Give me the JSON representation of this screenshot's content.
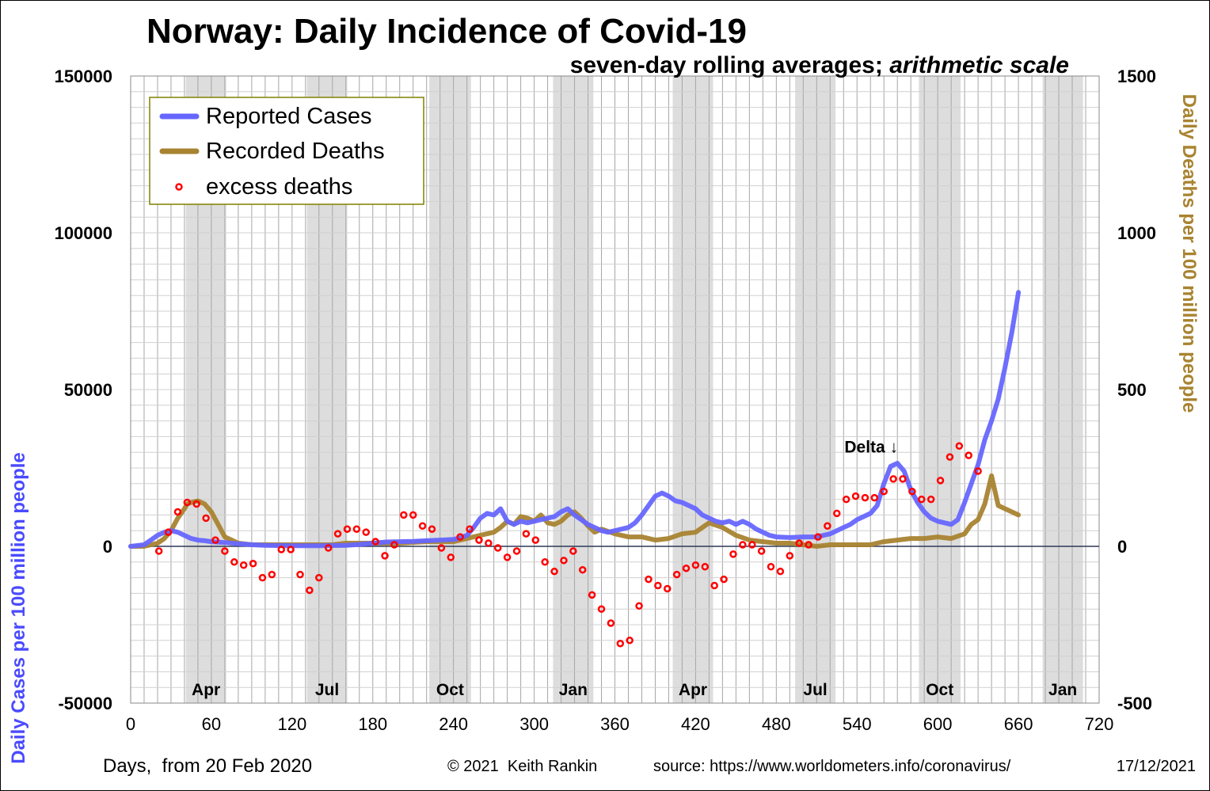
{
  "chart_data": {
    "type": "line",
    "title": "Norway: Daily Incidence of Covid-19",
    "subtitle_plain": "seven-day rolling averages;",
    "subtitle_italic": "arithmetic scale",
    "xlabel": "Days,  from 20 Feb 2020",
    "ylabel_left": "Daily Cases per 100 million people",
    "ylabel_right": "Daily Deaths per 100 million people",
    "xlim": [
      0,
      720
    ],
    "ylim_left": [
      -50000,
      150000
    ],
    "ylim_right": [
      -500,
      1500
    ],
    "x_ticks": [
      "0",
      "60",
      "120",
      "180",
      "240",
      "300",
      "360",
      "420",
      "480",
      "540",
      "600",
      "660",
      "720"
    ],
    "y_ticks_left": [
      "150000",
      "100000",
      "50000",
      "0",
      "-50000"
    ],
    "y_ticks_right": [
      "1500",
      "1000",
      "500",
      "0",
      "-500"
    ],
    "grid": true,
    "shaded_bands": [
      {
        "label": "Apr",
        "x0": 41,
        "x1": 71
      },
      {
        "label": "Jul",
        "x0": 131,
        "x1": 161
      },
      {
        "label": "Oct",
        "x0": 222,
        "x1": 253
      },
      {
        "label": "Jan",
        "x0": 314,
        "x1": 344
      },
      {
        "label": "Apr",
        "x0": 403,
        "x1": 433
      },
      {
        "label": "Jul",
        "x0": 494,
        "x1": 524
      },
      {
        "label": "Oct",
        "x0": 586,
        "x1": 617
      },
      {
        "label": "Jan",
        "x0": 678,
        "x1": 708
      }
    ],
    "legend": {
      "placement": "top-left",
      "entries": [
        {
          "label": "Reported Cases",
          "kind": "line",
          "color": "#6666ff"
        },
        {
          "label": "Recorded Deaths",
          "kind": "line",
          "color": "#a88330"
        },
        {
          "label": "excess deaths",
          "kind": "marker",
          "color": "#ff0000"
        }
      ]
    },
    "annotation": {
      "text": "Delta ↓",
      "x": 560,
      "y": 35000
    },
    "series": [
      {
        "name": "Reported Cases",
        "axis": "left",
        "color": "#6666ff",
        "x": [
          0,
          10,
          15,
          20,
          25,
          30,
          35,
          40,
          45,
          50,
          55,
          60,
          70,
          80,
          90,
          100,
          120,
          140,
          160,
          170,
          180,
          190,
          200,
          210,
          220,
          230,
          240,
          245,
          250,
          255,
          260,
          265,
          270,
          275,
          280,
          285,
          290,
          295,
          300,
          305,
          310,
          315,
          320,
          325,
          330,
          335,
          340,
          345,
          350,
          355,
          360,
          365,
          370,
          375,
          380,
          385,
          390,
          395,
          400,
          405,
          410,
          415,
          420,
          425,
          430,
          435,
          440,
          445,
          450,
          455,
          460,
          465,
          470,
          475,
          480,
          490,
          500,
          510,
          520,
          525,
          530,
          535,
          540,
          545,
          550,
          555,
          560,
          565,
          570,
          575,
          580,
          585,
          590,
          595,
          600,
          605,
          610,
          615,
          620,
          625,
          630,
          635,
          640,
          645,
          650,
          655,
          660
        ],
        "y": [
          0,
          500,
          2000,
          3500,
          4500,
          5000,
          4500,
          3500,
          2500,
          2000,
          1800,
          1500,
          1200,
          800,
          500,
          300,
          200,
          200,
          300,
          600,
          1000,
          1400,
          1500,
          1600,
          1800,
          2000,
          2200,
          2700,
          3500,
          6000,
          9000,
          10500,
          10000,
          12000,
          8000,
          7000,
          8000,
          7500,
          8000,
          8500,
          9000,
          9500,
          11000,
          12000,
          10000,
          8500,
          7000,
          6000,
          5000,
          4500,
          5000,
          5500,
          6000,
          7500,
          10000,
          13000,
          16000,
          17000,
          16000,
          14500,
          14000,
          13000,
          12000,
          10000,
          9000,
          8000,
          7500,
          8000,
          7000,
          8000,
          7000,
          5500,
          4500,
          3500,
          3000,
          2800,
          3000,
          3000,
          4000,
          5000,
          6000,
          7000,
          8500,
          9500,
          10500,
          13000,
          20000,
          25500,
          26500,
          24000,
          18000,
          14000,
          11000,
          9000,
          8000,
          7500,
          7000,
          8500,
          14000,
          20000,
          26000,
          34000,
          40000,
          47000,
          57000,
          68000,
          81000
        ]
      },
      {
        "name": "Recorded Deaths",
        "axis": "right",
        "color": "#a88330",
        "x": [
          0,
          10,
          20,
          25,
          30,
          35,
          40,
          42,
          45,
          50,
          55,
          60,
          65,
          70,
          80,
          90,
          100,
          110,
          120,
          130,
          140,
          150,
          160,
          170,
          180,
          200,
          220,
          240,
          260,
          270,
          275,
          280,
          285,
          290,
          295,
          300,
          305,
          310,
          315,
          320,
          325,
          330,
          335,
          340,
          345,
          350,
          360,
          370,
          380,
          390,
          400,
          410,
          420,
          430,
          440,
          450,
          460,
          470,
          480,
          490,
          500,
          510,
          520,
          530,
          540,
          550,
          560,
          570,
          580,
          590,
          600,
          610,
          620,
          625,
          630,
          635,
          640,
          645,
          650,
          655,
          660
        ],
        "y": [
          0,
          0,
          10,
          25,
          50,
          90,
          120,
          135,
          140,
          145,
          135,
          110,
          70,
          30,
          10,
          5,
          5,
          5,
          5,
          5,
          5,
          5,
          10,
          10,
          10,
          10,
          15,
          15,
          35,
          45,
          60,
          80,
          70,
          95,
          90,
          80,
          100,
          75,
          70,
          80,
          100,
          110,
          90,
          65,
          45,
          55,
          40,
          30,
          30,
          20,
          25,
          40,
          45,
          75,
          60,
          35,
          20,
          15,
          10,
          10,
          5,
          0,
          5,
          5,
          5,
          5,
          15,
          20,
          25,
          25,
          30,
          25,
          40,
          70,
          85,
          135,
          225,
          130,
          120,
          110,
          100
        ]
      },
      {
        "name": "excess deaths",
        "axis": "right",
        "color": "#ff0000",
        "kind": "points",
        "x": [
          21,
          28,
          35,
          42,
          49,
          56,
          63,
          70,
          77,
          84,
          91,
          98,
          105,
          112,
          119,
          126,
          133,
          140,
          147,
          154,
          161,
          168,
          175,
          182,
          189,
          196,
          203,
          210,
          217,
          224,
          231,
          238,
          245,
          252,
          259,
          266,
          273,
          280,
          287,
          294,
          301,
          308,
          315,
          322,
          329,
          336,
          343,
          350,
          357,
          364,
          371,
          378,
          385,
          392,
          399,
          406,
          413,
          420,
          427,
          434,
          441,
          448,
          455,
          462,
          469,
          476,
          483,
          490,
          497,
          504,
          511,
          518,
          525,
          532,
          539,
          546,
          553,
          560,
          567,
          574,
          581,
          588,
          595,
          602,
          609,
          616,
          623,
          630
        ],
        "y": [
          -15,
          45,
          110,
          140,
          135,
          90,
          20,
          -15,
          -50,
          -60,
          -55,
          -100,
          -90,
          -10,
          -10,
          -90,
          -140,
          -100,
          -5,
          40,
          55,
          55,
          45,
          15,
          -30,
          5,
          100,
          100,
          65,
          55,
          -5,
          -35,
          30,
          55,
          20,
          10,
          -5,
          -35,
          -15,
          40,
          20,
          -50,
          -80,
          -45,
          -15,
          -75,
          -155,
          -200,
          -245,
          -310,
          -300,
          -190,
          -105,
          -125,
          -135,
          -90,
          -70,
          -60,
          -65,
          -125,
          -105,
          -25,
          5,
          5,
          -15,
          -65,
          -80,
          -30,
          10,
          5,
          30,
          65,
          105,
          150,
          160,
          155,
          155,
          175,
          215,
          215,
          175,
          150,
          150,
          210,
          285,
          320,
          290,
          240
        ]
      }
    ]
  },
  "footer": {
    "copyright": "© 2021  Keith Rankin",
    "source": "source: https://www.worldometers.info/coronavirus/",
    "date": "17/12/2021"
  }
}
